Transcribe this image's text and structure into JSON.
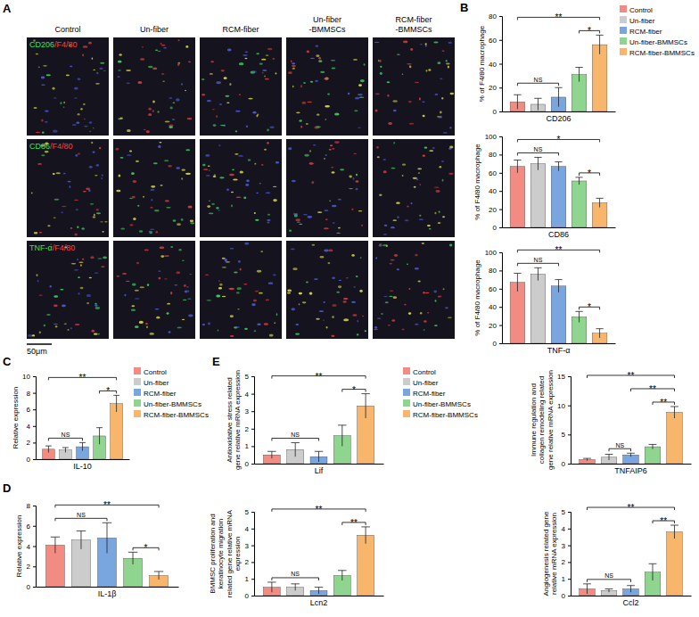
{
  "panel_labels": [
    "A",
    "B",
    "C",
    "D",
    "E"
  ],
  "image_panel": {
    "columns": [
      [
        "Control"
      ],
      [
        "Un-fiber"
      ],
      [
        "RCM-fiber"
      ],
      [
        "Un-fiber",
        "-BMMSCs"
      ],
      [
        "RCM-fiber",
        "-BMMSCs"
      ]
    ],
    "rows": [
      {
        "stain": "CD206",
        "counterstain": "/F4/80"
      },
      {
        "stain": "CD86",
        "counterstain": "/F4/80"
      },
      {
        "stain": "TNF-α",
        "counterstain": "/F4/80"
      }
    ],
    "scale_bar": "50μm"
  },
  "chart_data": [
    {
      "type": "bar",
      "categories": [
        "CD206"
      ],
      "y_label": "% of F4/80 macrophage",
      "ylim": [
        0,
        80
      ],
      "yticks": [
        0,
        20,
        40,
        60,
        80
      ],
      "legend": "right",
      "series": [
        {
          "name": "Control",
          "color": "#f28b82",
          "values": [
            8
          ],
          "error": [
            6
          ]
        },
        {
          "name": "Un-fiber",
          "color": "#cccccc",
          "values": [
            6
          ],
          "error": [
            5
          ]
        },
        {
          "name": "RCM-fiber",
          "color": "#7aa6e0",
          "values": [
            12
          ],
          "error": [
            8
          ]
        },
        {
          "name": "Un-fiber-BMMSCs",
          "color": "#8fd48f",
          "values": [
            31
          ],
          "error": [
            6
          ]
        },
        {
          "name": "RCM-fiber-BMMSCs",
          "color": "#f7b66b",
          "values": [
            56
          ],
          "error": [
            8
          ]
        }
      ],
      "annotations": [
        {
          "text": "NS",
          "from": 0,
          "to": 2
        },
        {
          "text": "**",
          "from": 0,
          "to": 4
        },
        {
          "text": "*",
          "from": 3,
          "to": 4
        }
      ]
    },
    {
      "type": "bar",
      "categories": [
        "CD86"
      ],
      "y_label": "% of F4/80 macrophage",
      "ylim": [
        0,
        100
      ],
      "yticks": [
        0,
        20,
        40,
        60,
        80,
        100
      ],
      "series": [
        {
          "name": "Control",
          "color": "#f28b82",
          "values": [
            67
          ],
          "error": [
            7
          ]
        },
        {
          "name": "Un-fiber",
          "color": "#cccccc",
          "values": [
            70
          ],
          "error": [
            7
          ]
        },
        {
          "name": "RCM-fiber",
          "color": "#7aa6e0",
          "values": [
            67
          ],
          "error": [
            5
          ]
        },
        {
          "name": "Un-fiber-BMMSCs",
          "color": "#8fd48f",
          "values": [
            51
          ],
          "error": [
            4
          ]
        },
        {
          "name": "RCM-fiber-BMMSCs",
          "color": "#f7b66b",
          "values": [
            27
          ],
          "error": [
            5
          ]
        }
      ],
      "annotations": [
        {
          "text": "NS",
          "from": 0,
          "to": 2
        },
        {
          "text": "*",
          "from": 0,
          "to": 4
        },
        {
          "text": "*",
          "from": 3,
          "to": 4
        }
      ]
    },
    {
      "type": "bar",
      "categories": [
        "TNF-α"
      ],
      "y_label": "% of F4/80 macrophage",
      "ylim": [
        0,
        100
      ],
      "yticks": [
        0,
        20,
        40,
        60,
        80,
        100
      ],
      "series": [
        {
          "name": "Control",
          "color": "#f28b82",
          "values": [
            67
          ],
          "error": [
            10
          ]
        },
        {
          "name": "Un-fiber",
          "color": "#cccccc",
          "values": [
            76
          ],
          "error": [
            7
          ]
        },
        {
          "name": "RCM-fiber",
          "color": "#7aa6e0",
          "values": [
            63
          ],
          "error": [
            7
          ]
        },
        {
          "name": "Un-fiber-BMMSCs",
          "color": "#8fd48f",
          "values": [
            29
          ],
          "error": [
            6
          ]
        },
        {
          "name": "RCM-fiber-BMMSCs",
          "color": "#f7b66b",
          "values": [
            11
          ],
          "error": [
            5
          ]
        }
      ],
      "annotations": [
        {
          "text": "NS",
          "from": 0,
          "to": 2
        },
        {
          "text": "**",
          "from": 0,
          "to": 4
        },
        {
          "text": "*",
          "from": 3,
          "to": 4
        }
      ]
    },
    {
      "type": "bar",
      "categories": [
        "IL-10"
      ],
      "y_label": "Relative expression",
      "ylim": [
        0,
        10
      ],
      "yticks": [
        0,
        2,
        4,
        6,
        8,
        10
      ],
      "legend": "right",
      "series": [
        {
          "name": "Control",
          "color": "#f28b82",
          "values": [
            1.2
          ],
          "error": [
            0.4
          ]
        },
        {
          "name": "Un-fiber",
          "color": "#cccccc",
          "values": [
            1.1
          ],
          "error": [
            0.3
          ]
        },
        {
          "name": "RCM-fiber",
          "color": "#7aa6e0",
          "values": [
            1.5
          ],
          "error": [
            0.5
          ]
        },
        {
          "name": "Un-fiber-BMMSCs",
          "color": "#8fd48f",
          "values": [
            2.8
          ],
          "error": [
            1.0
          ]
        },
        {
          "name": "RCM-fiber-BMMSCs",
          "color": "#f7b66b",
          "values": [
            6.7
          ],
          "error": [
            1.0
          ]
        }
      ],
      "annotations": [
        {
          "text": "NS",
          "from": 0,
          "to": 2
        },
        {
          "text": "**",
          "from": 0,
          "to": 4
        },
        {
          "text": "*",
          "from": 3,
          "to": 4
        }
      ]
    },
    {
      "type": "bar",
      "categories": [
        "IL-1β"
      ],
      "y_label": "Relative expression",
      "ylim": [
        0,
        8
      ],
      "yticks": [
        0,
        2,
        4,
        6,
        8
      ],
      "series": [
        {
          "name": "Control",
          "color": "#f28b82",
          "values": [
            4.1
          ],
          "error": [
            0.8
          ]
        },
        {
          "name": "Un-fiber",
          "color": "#cccccc",
          "values": [
            4.6
          ],
          "error": [
            0.9
          ]
        },
        {
          "name": "RCM-fiber",
          "color": "#7aa6e0",
          "values": [
            4.8
          ],
          "error": [
            1.5
          ]
        },
        {
          "name": "Un-fiber-BMMSCs",
          "color": "#8fd48f",
          "values": [
            2.8
          ],
          "error": [
            0.6
          ]
        },
        {
          "name": "RCM-fiber-BMMSCs",
          "color": "#f7b66b",
          "values": [
            1.1
          ],
          "error": [
            0.4
          ]
        }
      ],
      "annotations": [
        {
          "text": "NS",
          "from": 0,
          "to": 2
        },
        {
          "text": "**",
          "from": 0,
          "to": 4
        },
        {
          "text": "*",
          "from": 3,
          "to": 4
        }
      ]
    },
    {
      "type": "bar",
      "categories": [
        "Lif"
      ],
      "y_label": "Antioxidative stress related gene relative mRNA expression",
      "ylim": [
        0,
        5
      ],
      "yticks": [
        0,
        1,
        2,
        3,
        4,
        5
      ],
      "legend": "right",
      "series": [
        {
          "name": "Control",
          "color": "#f28b82",
          "values": [
            0.5
          ],
          "error": [
            0.2
          ]
        },
        {
          "name": "Un-fiber",
          "color": "#cccccc",
          "values": [
            0.8
          ],
          "error": [
            0.4
          ]
        },
        {
          "name": "RCM-fiber",
          "color": "#7aa6e0",
          "values": [
            0.4
          ],
          "error": [
            0.3
          ]
        },
        {
          "name": "Un-fiber-BMMSCs",
          "color": "#8fd48f",
          "values": [
            1.6
          ],
          "error": [
            0.6
          ]
        },
        {
          "name": "RCM-fiber-BMMSCs",
          "color": "#f7b66b",
          "values": [
            3.3
          ],
          "error": [
            0.7
          ]
        }
      ],
      "annotations": [
        {
          "text": "NS",
          "from": 0,
          "to": 2
        },
        {
          "text": "**",
          "from": 0,
          "to": 4
        },
        {
          "text": "*",
          "from": 3,
          "to": 4
        }
      ]
    },
    {
      "type": "bar",
      "categories": [
        "TNFAIP6"
      ],
      "y_label": "Immune regulation and collagen remodeling related gene relative mRNA expression",
      "ylim": [
        0,
        15
      ],
      "yticks": [
        0,
        5,
        10,
        15
      ],
      "series": [
        {
          "name": "Control",
          "color": "#f28b82",
          "values": [
            0.7
          ],
          "error": [
            0.2
          ]
        },
        {
          "name": "Un-fiber",
          "color": "#cccccc",
          "values": [
            1.1
          ],
          "error": [
            0.5
          ]
        },
        {
          "name": "RCM-fiber",
          "color": "#7aa6e0",
          "values": [
            1.5
          ],
          "error": [
            0.3
          ]
        },
        {
          "name": "Un-fiber-BMMSCs",
          "color": "#8fd48f",
          "values": [
            2.9
          ],
          "error": [
            0.4
          ]
        },
        {
          "name": "RCM-fiber-BMMSCs",
          "color": "#f7b66b",
          "values": [
            8.8
          ],
          "error": [
            1.0
          ]
        }
      ],
      "annotations": [
        {
          "text": "NS",
          "from": 1,
          "to": 2
        },
        {
          "text": "**",
          "from": 0,
          "to": 4
        },
        {
          "text": "**",
          "from": 2,
          "to": 4
        },
        {
          "text": "**",
          "from": 3,
          "to": 4
        }
      ]
    },
    {
      "type": "bar",
      "categories": [
        "Lcn2"
      ],
      "y_label": "BMMSC proliferation and keratinocyte migration related gene relative mRNA expression",
      "ylim": [
        0,
        5
      ],
      "yticks": [
        0,
        1,
        2,
        3,
        4,
        5
      ],
      "series": [
        {
          "name": "Control",
          "color": "#f28b82",
          "values": [
            0.5
          ],
          "error": [
            0.3
          ]
        },
        {
          "name": "Un-fiber",
          "color": "#cccccc",
          "values": [
            0.5
          ],
          "error": [
            0.2
          ]
        },
        {
          "name": "RCM-fiber",
          "color": "#7aa6e0",
          "values": [
            0.3
          ],
          "error": [
            0.2
          ]
        },
        {
          "name": "Un-fiber-BMMSCs",
          "color": "#8fd48f",
          "values": [
            1.2
          ],
          "error": [
            0.3
          ]
        },
        {
          "name": "RCM-fiber-BMMSCs",
          "color": "#f7b66b",
          "values": [
            3.6
          ],
          "error": [
            0.5
          ]
        }
      ],
      "annotations": [
        {
          "text": "NS",
          "from": 0,
          "to": 2
        },
        {
          "text": "**",
          "from": 0,
          "to": 4
        },
        {
          "text": "**",
          "from": 3,
          "to": 4
        }
      ]
    },
    {
      "type": "bar",
      "categories": [
        "Ccl2"
      ],
      "y_label": "Angiogenesis related gene relative mRNA expression",
      "ylim": [
        0,
        5
      ],
      "yticks": [
        0,
        1,
        2,
        3,
        4,
        5
      ],
      "series": [
        {
          "name": "Control",
          "color": "#f28b82",
          "values": [
            0.4
          ],
          "error": [
            0.3
          ]
        },
        {
          "name": "Un-fiber",
          "color": "#cccccc",
          "values": [
            0.3
          ],
          "error": [
            0.1
          ]
        },
        {
          "name": "RCM-fiber",
          "color": "#7aa6e0",
          "values": [
            0.4
          ],
          "error": [
            0.2
          ]
        },
        {
          "name": "Un-fiber-BMMSCs",
          "color": "#8fd48f",
          "values": [
            1.4
          ],
          "error": [
            0.5
          ]
        },
        {
          "name": "RCM-fiber-BMMSCs",
          "color": "#f7b66b",
          "values": [
            3.8
          ],
          "error": [
            0.4
          ]
        }
      ],
      "annotations": [
        {
          "text": "NS",
          "from": 0,
          "to": 2
        },
        {
          "text": "**",
          "from": 0,
          "to": 4
        },
        {
          "text": "**",
          "from": 3,
          "to": 4
        }
      ]
    }
  ]
}
